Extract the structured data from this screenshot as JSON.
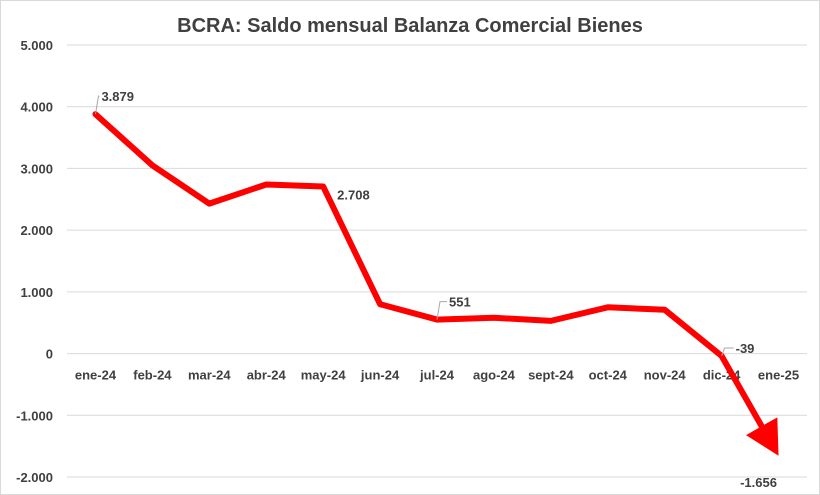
{
  "chart_data": {
    "type": "line",
    "title": "BCRA: Saldo mensual Balanza Comercial Bienes",
    "categories": [
      "ene-24",
      "feb-24",
      "mar-24",
      "abr-24",
      "may-24",
      "jun-24",
      "jul-24",
      "ago-24",
      "sept-24",
      "oct-24",
      "nov-24",
      "dic-24",
      "ene-25"
    ],
    "values": [
      3879,
      3050,
      2430,
      2740,
      2708,
      800,
      551,
      580,
      530,
      750,
      710,
      -39,
      -1656
    ],
    "ylim": [
      -2000,
      5000
    ],
    "yticks": [
      5000,
      4000,
      3000,
      2000,
      1000,
      0,
      -1000,
      -2000
    ],
    "ytick_labels": [
      "5.000",
      "4.000",
      "3.000",
      "2.000",
      "1.000",
      "0",
      "-1.000",
      "-2.000"
    ],
    "data_labels": [
      {
        "index": 0,
        "text": "3.879"
      },
      {
        "index": 4,
        "text": "2.708"
      },
      {
        "index": 6,
        "text": "551"
      },
      {
        "index": 11,
        "text": "-39"
      },
      {
        "index": 12,
        "text": "-1.656"
      }
    ],
    "line_color": "#ff0000",
    "grid": true,
    "last_point_arrow": true
  }
}
